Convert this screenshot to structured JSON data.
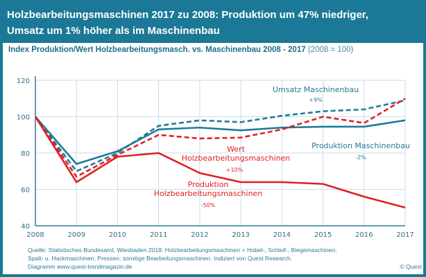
{
  "header": {
    "line1": "Holzbearbeitungsmaschinen 2017 zu 2008: Produktion um 47% niedriger,",
    "line2": "Umsatz um 1% höher als im Maschinenbau"
  },
  "subtitle": {
    "main": "Index Produktion/Wert Holzbearbeitungsmasch. vs. Maschinenbau 2008 - 2017",
    "note": "(2008 = 100)"
  },
  "footer": {
    "line1": "Quelle: Statistisches Bundesamt, Wiesbaden 2018. Holzbearbeitungsmaschinen = Hobel-, Schleif-, Biegemaschinen;",
    "line2": "Spalt- u. Hackmaschinen; Pressen; sonstige Bearbeitungsmaschinen. Indiziert von Quest Research.",
    "line3": "Diagramm  www.quest-trendmagazin.de",
    "copyright": "© Quest"
  },
  "chart_data": {
    "type": "line",
    "x": [
      2008,
      2009,
      2010,
      2011,
      2012,
      2013,
      2014,
      2015,
      2016,
      2017
    ],
    "ylim": [
      40,
      120
    ],
    "yticks": [
      40,
      60,
      80,
      100,
      120
    ],
    "grid": true,
    "series": [
      {
        "name": "Produktion Maschinenbau",
        "change": "-2%",
        "color": "#1f7a99",
        "dash": false,
        "values": [
          100,
          74,
          81,
          93,
          94,
          92.5,
          94,
          94.5,
          94.5,
          98
        ]
      },
      {
        "name": "Umsatz Maschinenbau",
        "change": "+9%",
        "color": "#1f7a99",
        "dash": true,
        "values": [
          100,
          70,
          80,
          95,
          98,
          97,
          100.5,
          103,
          104,
          109
        ]
      },
      {
        "name": "Wert Holzbearbeitungsmaschinen",
        "change": "+10%",
        "color": "#e02020",
        "dash": true,
        "values": [
          100,
          67,
          79,
          90,
          88,
          88.5,
          93,
          100,
          96.5,
          110
        ]
      },
      {
        "name": "Produktion Holzbearbeitungsmaschinen",
        "change": "-50%",
        "color": "#e02020",
        "dash": false,
        "values": [
          100,
          64,
          78,
          80,
          69,
          64,
          64,
          63,
          56,
          50
        ]
      }
    ]
  }
}
